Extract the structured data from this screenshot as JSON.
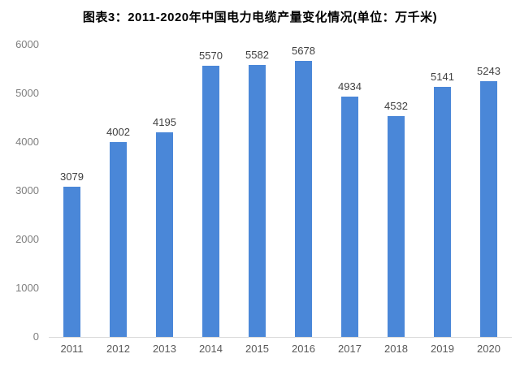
{
  "chart_data": {
    "type": "bar",
    "title": "图表3：2011-2020年中国电力电缆产量变化情况(单位：万千米)",
    "categories": [
      "2011",
      "2012",
      "2013",
      "2014",
      "2015",
      "2016",
      "2017",
      "2018",
      "2019",
      "2020"
    ],
    "values": [
      3079,
      4002,
      4195,
      5570,
      5582,
      5678,
      4934,
      4532,
      5141,
      5243
    ],
    "xlabel": "",
    "ylabel": "",
    "ylim": [
      0,
      6000
    ],
    "yticks": [
      0,
      1000,
      2000,
      3000,
      4000,
      5000,
      6000
    ],
    "grid": "off",
    "legend": "none",
    "bar_color": "#4a87d8",
    "axis_line_color": "#d9d9d9",
    "data_labels": "above bars"
  }
}
